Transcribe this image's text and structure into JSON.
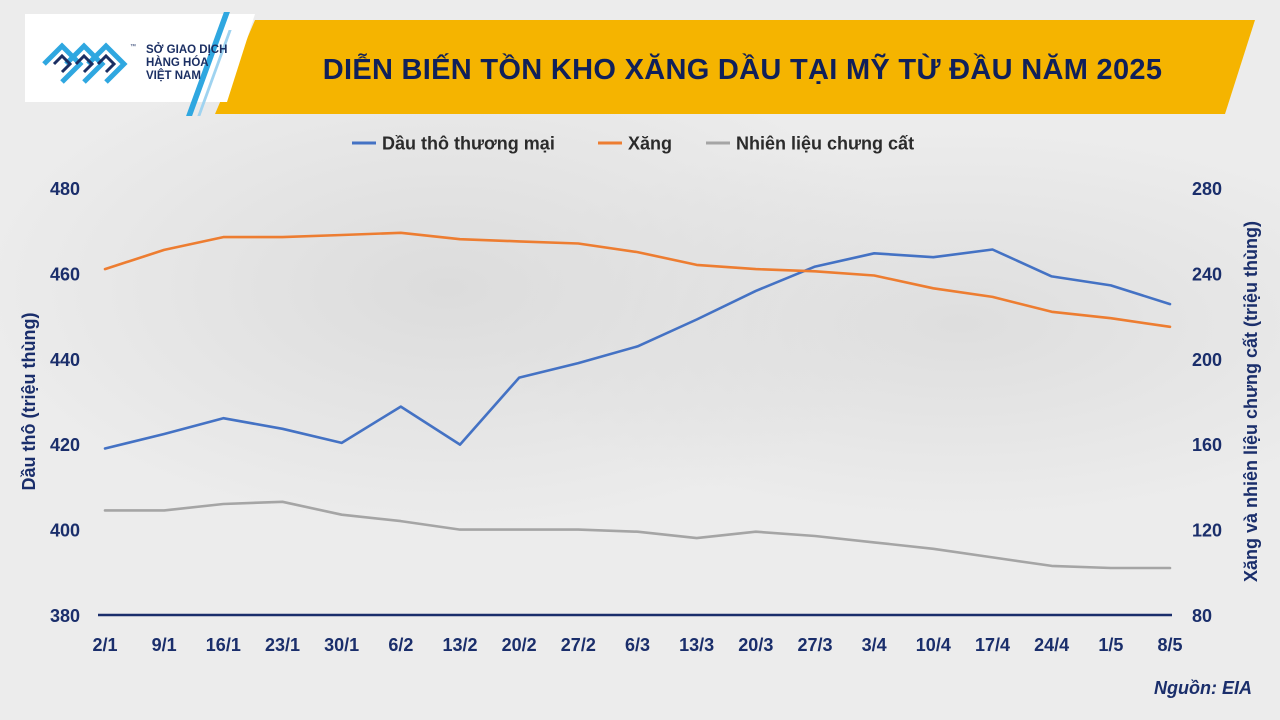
{
  "header": {
    "title": "DIỄN BIẾN TỒN KHO XĂNG DẦU TẠI MỸ TỪ ĐẦU NĂM 2025"
  },
  "logo": {
    "line1": "SỞ GIAO DỊCH",
    "line2": "HÀNG HÓA",
    "line3": "VIỆT NAM",
    "tm": "™",
    "icon": "sgdhhvn-logo-icon"
  },
  "source": "Nguồn: EIA",
  "colors": {
    "crude": "#4472c4",
    "gasoline": "#ed7d31",
    "distillate": "#a5a5a5",
    "axis": "#1a2e6b",
    "header": "#f5b400"
  },
  "chart_data": {
    "type": "line",
    "categories": [
      "2/1",
      "9/1",
      "16/1",
      "23/1",
      "30/1",
      "6/2",
      "13/2",
      "20/2",
      "27/2",
      "6/3",
      "13/3",
      "20/3",
      "27/3",
      "3/4",
      "10/4",
      "17/4",
      "24/4",
      "1/5",
      "8/5"
    ],
    "ylabel": "Dầu thô (triệu thùng)",
    "y2label": "Xăng và nhiên liệu chưng cất (triệu thùng)",
    "ylim": [
      380,
      480
    ],
    "y2lim": [
      80,
      280
    ],
    "yticks": [
      380,
      400,
      420,
      440,
      460,
      480
    ],
    "y2ticks": [
      80,
      120,
      160,
      200,
      240,
      280
    ],
    "legend_position": "top",
    "grid": false,
    "series": [
      {
        "name": "Dầu thô thương mại",
        "axis": "left",
        "values": [
          419.0,
          422.4,
          426.1,
          423.6,
          420.3,
          428.8,
          419.9,
          435.6,
          439.0,
          442.9,
          449.2,
          455.9,
          461.6,
          464.7,
          463.8,
          465.6,
          459.3,
          457.2,
          452.8
        ]
      },
      {
        "name": "Xăng",
        "axis": "right",
        "values": [
          242,
          251,
          257,
          257,
          258,
          259,
          256,
          255,
          254,
          250,
          244,
          242,
          241,
          239,
          233,
          229,
          222,
          219,
          215
        ]
      },
      {
        "name": "Nhiên liệu chưng cất",
        "axis": "right",
        "values": [
          129,
          129,
          132,
          133,
          127,
          124,
          120,
          120,
          120,
          119,
          116,
          119,
          117,
          114,
          111,
          107,
          103,
          102,
          102
        ]
      }
    ]
  }
}
